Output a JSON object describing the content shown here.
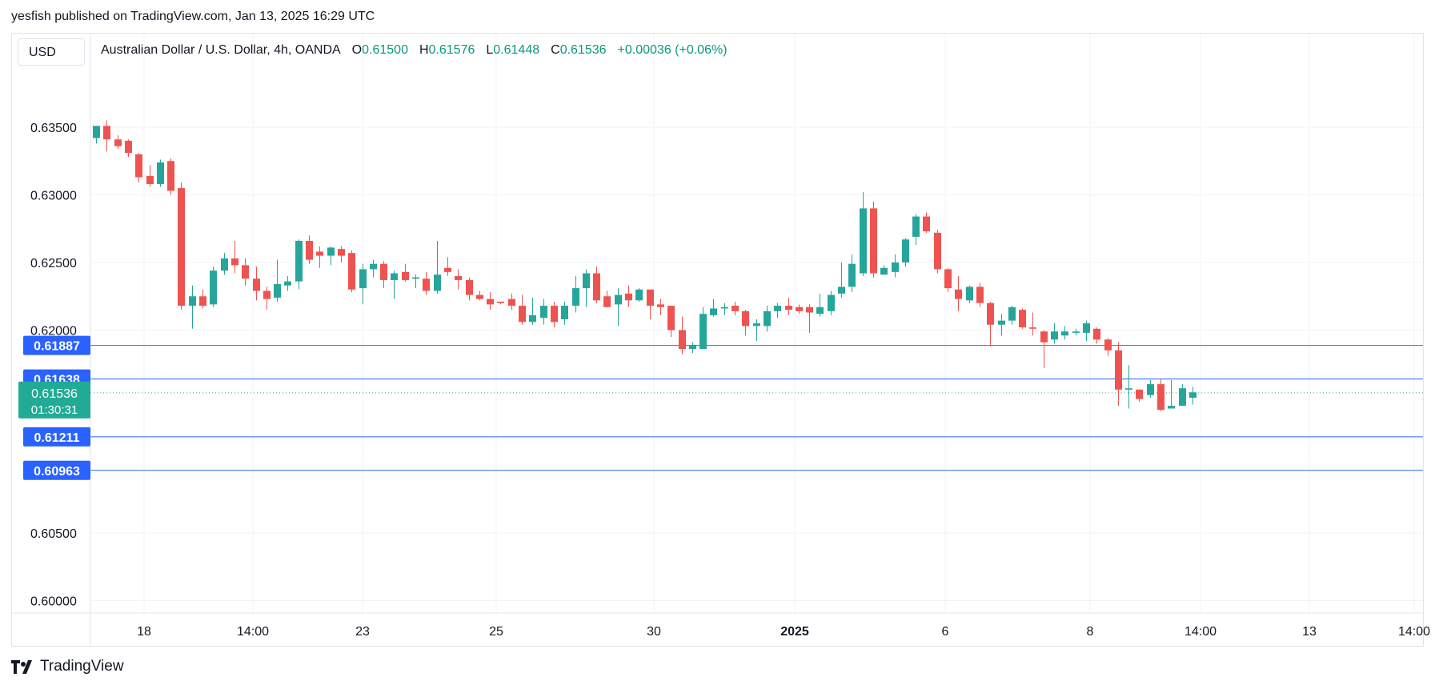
{
  "publish_line": "yesfish published on TradingView.com, Jan 13, 2025 16:29 UTC",
  "currency_button": "USD",
  "legend": {
    "symbol": "Australian Dollar / U.S. Dollar, 4h, OANDA",
    "open_label": "O",
    "open": "0.61500",
    "high_label": "H",
    "high": "0.61576",
    "low_label": "L",
    "low": "0.61448",
    "close_label": "C",
    "close": "0.61536",
    "change": "+0.00036 (+0.06%)"
  },
  "brand": "TradingView",
  "colors": {
    "up": "#26a69a",
    "down": "#ef5350",
    "level_line": "#2962ff",
    "grid": "#f0f3fa",
    "price_tag": "#22ab94"
  },
  "chart_data": {
    "type": "candlestick",
    "y_axis_ticks": [
      "0.63500",
      "0.63000",
      "0.62500",
      "0.62000",
      "0.60500",
      "0.60000"
    ],
    "y_axis_tick_values": [
      0.635,
      0.63,
      0.625,
      0.62,
      0.605,
      0.6
    ],
    "ylim": [
      0.5995,
      0.6375
    ],
    "x_axis_ticks": [
      "18",
      "14:00",
      "23",
      "25",
      "30",
      "2025",
      "6",
      "8",
      "14:00",
      "13",
      "14:00"
    ],
    "horizontal_levels": [
      {
        "label": "0.61887",
        "value": 0.61887
      },
      {
        "label": "0.61638",
        "value": 0.61638
      },
      {
        "label": "0.61211",
        "value": 0.61211
      },
      {
        "label": "0.60963",
        "value": 0.60963
      }
    ],
    "last_price": {
      "label": "0.61536",
      "value": 0.61536,
      "countdown": "01:30:31"
    },
    "candles": [
      [
        0.6342,
        0.6351,
        0.6338,
        0.6351
      ],
      [
        0.6351,
        0.6355,
        0.6332,
        0.6341
      ],
      [
        0.6341,
        0.6344,
        0.6334,
        0.6336
      ],
      [
        0.634,
        0.6341,
        0.6328,
        0.6331
      ],
      [
        0.633,
        0.6331,
        0.6309,
        0.6313
      ],
      [
        0.6314,
        0.6322,
        0.6306,
        0.6308
      ],
      [
        0.6308,
        0.6326,
        0.6306,
        0.6324
      ],
      [
        0.6325,
        0.6327,
        0.63,
        0.6303
      ],
      [
        0.6305,
        0.6309,
        0.6215,
        0.6218
      ],
      [
        0.6218,
        0.6233,
        0.6201,
        0.6225
      ],
      [
        0.6225,
        0.623,
        0.6216,
        0.6218
      ],
      [
        0.6219,
        0.6247,
        0.6217,
        0.6244
      ],
      [
        0.6244,
        0.6257,
        0.6241,
        0.6253
      ],
      [
        0.6253,
        0.6266,
        0.6242,
        0.6248
      ],
      [
        0.6248,
        0.6253,
        0.6233,
        0.6238
      ],
      [
        0.6238,
        0.6247,
        0.6222,
        0.6229
      ],
      [
        0.6229,
        0.6232,
        0.6215,
        0.6223
      ],
      [
        0.6224,
        0.6252,
        0.6221,
        0.6234
      ],
      [
        0.6233,
        0.624,
        0.6229,
        0.6236
      ],
      [
        0.6236,
        0.6267,
        0.623,
        0.6266
      ],
      [
        0.6266,
        0.627,
        0.6249,
        0.6252
      ],
      [
        0.6258,
        0.6262,
        0.6246,
        0.6255
      ],
      [
        0.6255,
        0.6262,
        0.6248,
        0.6261
      ],
      [
        0.626,
        0.6262,
        0.625,
        0.6255
      ],
      [
        0.6257,
        0.6259,
        0.6228,
        0.623
      ],
      [
        0.6231,
        0.6249,
        0.6219,
        0.6245
      ],
      [
        0.6245,
        0.6252,
        0.6239,
        0.6249
      ],
      [
        0.6249,
        0.6251,
        0.6231,
        0.6237
      ],
      [
        0.6237,
        0.6244,
        0.6223,
        0.6242
      ],
      [
        0.6243,
        0.6249,
        0.6236,
        0.6237
      ],
      [
        0.6238,
        0.6241,
        0.6231,
        0.6239
      ],
      [
        0.6238,
        0.6243,
        0.6226,
        0.6229
      ],
      [
        0.6229,
        0.6266,
        0.6227,
        0.6241
      ],
      [
        0.6246,
        0.6254,
        0.624,
        0.6243
      ],
      [
        0.624,
        0.6245,
        0.623,
        0.6237
      ],
      [
        0.6237,
        0.6239,
        0.6222,
        0.6226
      ],
      [
        0.6226,
        0.6229,
        0.6222,
        0.6223
      ],
      [
        0.6223,
        0.6228,
        0.6215,
        0.6219
      ],
      [
        0.6221,
        0.6221,
        0.6219,
        0.622
      ],
      [
        0.6223,
        0.6227,
        0.6215,
        0.6218
      ],
      [
        0.6218,
        0.6226,
        0.6204,
        0.6206
      ],
      [
        0.6206,
        0.6224,
        0.6204,
        0.6211
      ],
      [
        0.6209,
        0.6223,
        0.6204,
        0.6218
      ],
      [
        0.6218,
        0.6221,
        0.6202,
        0.6206
      ],
      [
        0.6208,
        0.6221,
        0.6204,
        0.6218
      ],
      [
        0.6218,
        0.624,
        0.6213,
        0.6231
      ],
      [
        0.6231,
        0.6245,
        0.6217,
        0.6242
      ],
      [
        0.6242,
        0.6247,
        0.622,
        0.6222
      ],
      [
        0.6225,
        0.6229,
        0.6217,
        0.6217
      ],
      [
        0.6219,
        0.6231,
        0.6203,
        0.6226
      ],
      [
        0.6227,
        0.6233,
        0.6217,
        0.6222
      ],
      [
        0.6222,
        0.6231,
        0.6221,
        0.623
      ],
      [
        0.623,
        0.623,
        0.6208,
        0.6218
      ],
      [
        0.6219,
        0.6223,
        0.6211,
        0.6217
      ],
      [
        0.6218,
        0.6218,
        0.6195,
        0.62
      ],
      [
        0.62,
        0.621,
        0.6182,
        0.6186
      ],
      [
        0.6186,
        0.6191,
        0.6183,
        0.6189
      ],
      [
        0.6186,
        0.6217,
        0.6186,
        0.6212
      ],
      [
        0.6211,
        0.6223,
        0.621,
        0.6216
      ],
      [
        0.6216,
        0.622,
        0.6211,
        0.6217
      ],
      [
        0.6218,
        0.6221,
        0.6211,
        0.6214
      ],
      [
        0.6214,
        0.6215,
        0.6196,
        0.6203
      ],
      [
        0.6203,
        0.6208,
        0.6192,
        0.6205
      ],
      [
        0.6203,
        0.6218,
        0.6199,
        0.6214
      ],
      [
        0.6214,
        0.622,
        0.6209,
        0.6218
      ],
      [
        0.6218,
        0.6224,
        0.6211,
        0.6215
      ],
      [
        0.6217,
        0.6219,
        0.6212,
        0.6214
      ],
      [
        0.6217,
        0.6219,
        0.6198,
        0.6213
      ],
      [
        0.6212,
        0.6227,
        0.621,
        0.6217
      ],
      [
        0.6214,
        0.6229,
        0.6211,
        0.6226
      ],
      [
        0.6227,
        0.625,
        0.6224,
        0.6232
      ],
      [
        0.6232,
        0.6256,
        0.6228,
        0.6249
      ],
      [
        0.6242,
        0.6302,
        0.624,
        0.629
      ],
      [
        0.629,
        0.6295,
        0.6239,
        0.6242
      ],
      [
        0.6241,
        0.6248,
        0.6241,
        0.6246
      ],
      [
        0.6243,
        0.6256,
        0.6239,
        0.625
      ],
      [
        0.625,
        0.6268,
        0.6247,
        0.6267
      ],
      [
        0.6269,
        0.6286,
        0.6263,
        0.6284
      ],
      [
        0.6284,
        0.6287,
        0.6272,
        0.6273
      ],
      [
        0.6272,
        0.6274,
        0.6242,
        0.6245
      ],
      [
        0.6245,
        0.6246,
        0.6228,
        0.6231
      ],
      [
        0.623,
        0.624,
        0.6214,
        0.6223
      ],
      [
        0.6222,
        0.6233,
        0.622,
        0.6232
      ],
      [
        0.6232,
        0.6235,
        0.6217,
        0.622
      ],
      [
        0.622,
        0.6221,
        0.6188,
        0.6204
      ],
      [
        0.6204,
        0.6212,
        0.6196,
        0.6207
      ],
      [
        0.6207,
        0.6218,
        0.6204,
        0.6217
      ],
      [
        0.6215,
        0.6216,
        0.6201,
        0.6202
      ],
      [
        0.6202,
        0.6213,
        0.6196,
        0.6201
      ],
      [
        0.6199,
        0.62,
        0.6172,
        0.6191
      ],
      [
        0.6193,
        0.6205,
        0.619,
        0.6199
      ],
      [
        0.6196,
        0.6203,
        0.6193,
        0.6199
      ],
      [
        0.6198,
        0.6201,
        0.6196,
        0.6199
      ],
      [
        0.6198,
        0.6207,
        0.6192,
        0.6205
      ],
      [
        0.6201,
        0.6202,
        0.619,
        0.6193
      ],
      [
        0.6193,
        0.6194,
        0.6181,
        0.6185
      ],
      [
        0.6185,
        0.6191,
        0.6144,
        0.6156
      ],
      [
        0.6156,
        0.6174,
        0.6142,
        0.6157
      ],
      [
        0.6156,
        0.6156,
        0.6147,
        0.6149
      ],
      [
        0.6152,
        0.6163,
        0.615,
        0.616
      ],
      [
        0.616,
        0.6164,
        0.614,
        0.6141
      ],
      [
        0.6142,
        0.6163,
        0.6142,
        0.6144
      ],
      [
        0.6144,
        0.616,
        0.6144,
        0.6157
      ],
      [
        0.615,
        0.6158,
        0.6145,
        0.6154
      ]
    ]
  }
}
